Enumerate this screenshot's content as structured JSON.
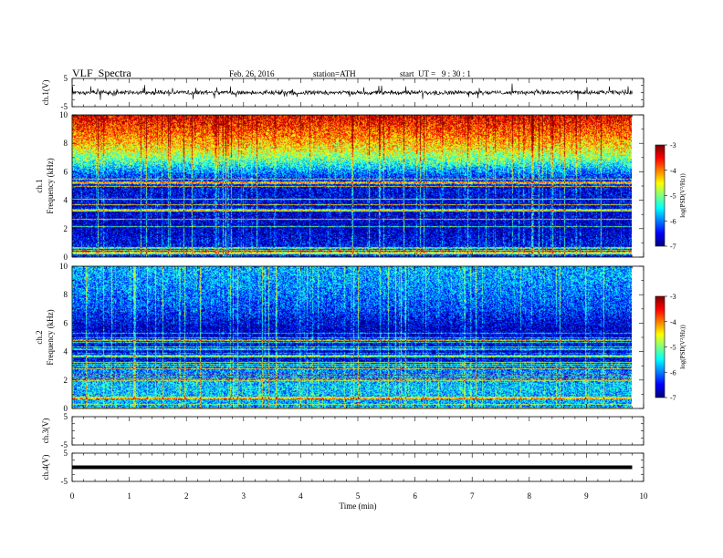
{
  "header": {
    "title": "VLF  Spectra",
    "date": "Feb. 26, 2016",
    "station": "station=ATH",
    "start": "start  UT =   9 : 30 : 1"
  },
  "chart_data": [
    {
      "type": "line",
      "panel": "ch1-waveform",
      "ylabel": "ch.1(V)",
      "ylim": [
        -5,
        5
      ],
      "yticks": [
        "5",
        "-5"
      ],
      "xlim": [
        0,
        10
      ],
      "color": "#000000",
      "description_free": true
    },
    {
      "type": "heatmap",
      "panel": "ch1-spectrogram",
      "ylabel": "ch.1",
      "ylabel2": "Frequency  (kHz)",
      "ylim": [
        0,
        10
      ],
      "yticks": [
        "0",
        "2",
        "4",
        "6",
        "8",
        "10"
      ],
      "xlim": [
        0,
        10
      ],
      "colorbar": {
        "label": "log(PSD(V²/Hz))",
        "ticks": [
          "-3",
          "-4",
          "-5",
          "-6",
          "-7"
        ],
        "range": [
          -7,
          -3
        ]
      },
      "profile": [
        {
          "f": 0.0,
          "v": -6.4
        },
        {
          "f": 2.0,
          "v": -6.8
        },
        {
          "f": 3.5,
          "v": -6.7
        },
        {
          "f": 5.0,
          "v": -6.6
        },
        {
          "f": 5.8,
          "v": -6.2
        },
        {
          "f": 6.6,
          "v": -5.4
        },
        {
          "f": 7.5,
          "v": -4.6
        },
        {
          "f": 8.6,
          "v": -4.0
        },
        {
          "f": 10.0,
          "v": -3.4
        }
      ]
    },
    {
      "type": "heatmap",
      "panel": "ch2-spectrogram",
      "ylabel": "ch.2",
      "ylabel2": "Frequency  (kHz)",
      "ylim": [
        0,
        10
      ],
      "yticks": [
        "0",
        "2",
        "4",
        "6",
        "8",
        "10"
      ],
      "xlim": [
        0,
        10
      ],
      "colorbar": {
        "label": "log(PSD(V²/Hz))",
        "ticks": [
          "-3",
          "-4",
          "-5",
          "-6",
          "-7"
        ],
        "range": [
          -7,
          -3
        ]
      },
      "profile": [
        {
          "f": 0.0,
          "v": -5.9
        },
        {
          "f": 1.5,
          "v": -5.7
        },
        {
          "f": 2.8,
          "v": -6.1
        },
        {
          "f": 3.6,
          "v": -6.8
        },
        {
          "f": 4.5,
          "v": -6.6
        },
        {
          "f": 5.6,
          "v": -6.8
        },
        {
          "f": 7.0,
          "v": -6.3
        },
        {
          "f": 8.5,
          "v": -6.0
        },
        {
          "f": 10.0,
          "v": -5.8
        }
      ]
    },
    {
      "type": "line",
      "panel": "ch3-waveform",
      "ylabel": "ch.3(V)",
      "ylim": [
        -5,
        5
      ],
      "yticks": [
        "5",
        "-5"
      ],
      "xlim": [
        0,
        10
      ]
    },
    {
      "type": "line",
      "panel": "ch4-waveform",
      "ylabel": "ch.4(V)",
      "ylim": [
        -5,
        5
      ],
      "yticks": [
        "5",
        "-5"
      ],
      "xlim": [
        0,
        10
      ],
      "level": [
        {
          "t": 0,
          "v": 0
        },
        {
          "t": 9.8,
          "v": 0
        }
      ]
    }
  ],
  "xaxis": {
    "label": "Time  (min)",
    "ticks": [
      "0",
      "1",
      "2",
      "3",
      "4",
      "5",
      "6",
      "7",
      "8",
      "9",
      "10"
    ],
    "data_end": 9.8
  }
}
